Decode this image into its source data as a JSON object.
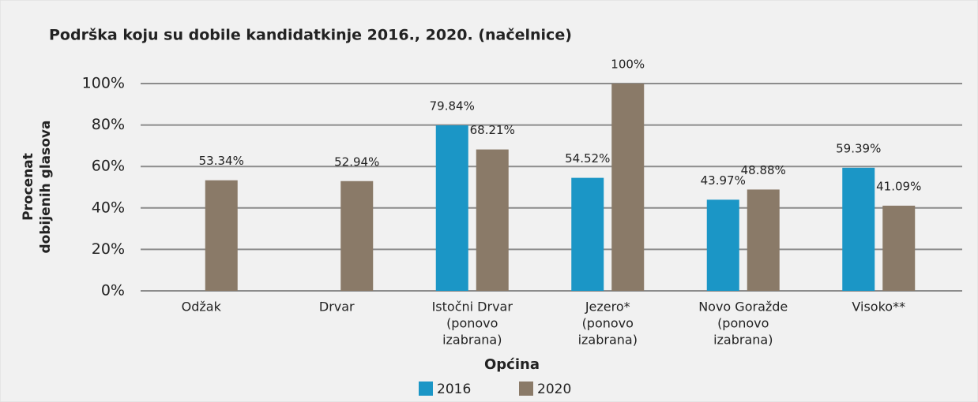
{
  "chart_data": {
    "type": "bar",
    "title": "Podrška koju su dobile kandidatkinje 2016., 2020. (načelnice)",
    "y_label": [
      "Procenat",
      "dobijenih glasova"
    ],
    "x_label": "Općina",
    "categories": [
      [
        "Odžak"
      ],
      [
        "Drvar"
      ],
      [
        "Istočni Drvar",
        "(ponovo",
        "izabrana)"
      ],
      [
        "Jezero*",
        "(ponovo",
        "izabrana)"
      ],
      [
        "Novo Goražde",
        "(ponovo",
        "izabrana)"
      ],
      [
        "Visoko**"
      ]
    ],
    "series": [
      {
        "name": "2016",
        "color": "#1b96c6",
        "values": [
          null,
          null,
          79.84,
          54.52,
          43.97,
          59.39
        ],
        "value_labels": [
          null,
          null,
          "79.84%",
          "54.52%",
          "43.97%",
          "59.39%"
        ]
      },
      {
        "name": "2020",
        "color": "#8a7a68",
        "values": [
          53.34,
          52.94,
          68.21,
          100,
          48.88,
          41.09
        ],
        "value_labels": [
          "53.34%",
          "52.94%",
          "68.21%",
          "100%",
          "48.88%",
          "41.09%"
        ]
      }
    ],
    "ylim": [
      0,
      100
    ],
    "yticks": [
      {
        "value": 0,
        "label": "0%"
      },
      {
        "value": 20,
        "label": "20%"
      },
      {
        "value": 40,
        "label": "40%"
      },
      {
        "value": 60,
        "label": "60%"
      },
      {
        "value": 80,
        "label": "80%"
      },
      {
        "value": 100,
        "label": "100%"
      }
    ],
    "grid": true,
    "legend": "bottom"
  }
}
